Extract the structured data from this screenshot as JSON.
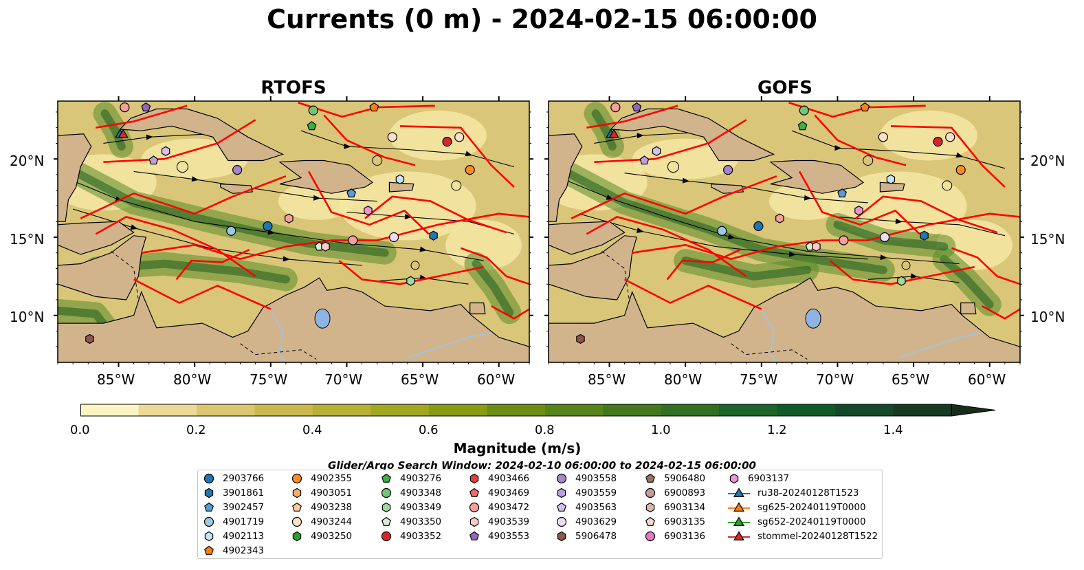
{
  "title": "Currents (0 m) - 2024-02-15 06:00:00",
  "panels": [
    {
      "title": "RTOFS"
    },
    {
      "title": "GOFS"
    }
  ],
  "axes": {
    "lat_labels": [
      "20°N",
      "15°N",
      "10°N"
    ],
    "lon_labels": [
      "85°W",
      "80°W",
      "75°W",
      "70°W",
      "65°W",
      "60°W"
    ]
  },
  "colorbar": {
    "label": "Magnitude (m/s)",
    "ticks": [
      "0.0",
      "0.2",
      "0.4",
      "0.6",
      "0.8",
      "1.0",
      "1.2",
      "1.4"
    ],
    "min": 0.0,
    "max": 1.5,
    "step": 0.1,
    "extend": "max",
    "colors": [
      "#fbf5c1",
      "#ecd994",
      "#dcc670",
      "#ccb94e",
      "#b8b135",
      "#a1a720",
      "#899c12",
      "#6f8f12",
      "#578418",
      "#43791c",
      "#317020",
      "#1c6528",
      "#0f5a2a",
      "#13492a",
      "#183a25",
      "#192c1c"
    ]
  },
  "colors": {
    "land": "#d2b48c",
    "lake": "#8fb4e3",
    "river": "#a7c0de",
    "track": "#ff0000",
    "streamline": "#000000",
    "water_light": "#f4e7a5",
    "water_green": "#5a8a2a"
  },
  "search_window": "Glider/Argo Search Window: 2024-02-10 06:00:00 to 2024-02-15 06:00:00",
  "legend": [
    [
      {
        "label": "2903766",
        "marker": "circle",
        "color": "#1f77b4"
      },
      {
        "label": "3901861",
        "marker": "hexagon",
        "color": "#1f77b4"
      },
      {
        "label": "3902457",
        "marker": "pentagon",
        "color": "#5b9bd5"
      },
      {
        "label": "4901719",
        "marker": "circle",
        "color": "#9ecae1"
      },
      {
        "label": "4902113",
        "marker": "hexagon",
        "color": "#c6e4f7"
      },
      {
        "label": "4902343",
        "marker": "pentagon",
        "color": "#ff7f0e"
      }
    ],
    [
      {
        "label": "4902355",
        "marker": "circle",
        "color": "#ff8c24"
      },
      {
        "label": "4903051",
        "marker": "hexagon",
        "color": "#fdae6b"
      },
      {
        "label": "4903238",
        "marker": "pentagon",
        "color": "#fdc99a"
      },
      {
        "label": "4903244",
        "marker": "circle",
        "color": "#fde0c5"
      },
      {
        "label": "4903250",
        "marker": "hexagon",
        "color": "#2ca02c"
      }
    ],
    [
      {
        "label": "4903276",
        "marker": "pentagon",
        "color": "#3cb044"
      },
      {
        "label": "4903348",
        "marker": "circle",
        "color": "#74c476"
      },
      {
        "label": "4903349",
        "marker": "hexagon",
        "color": "#a1d99b"
      },
      {
        "label": "4903350",
        "marker": "pentagon",
        "color": "#d5efcf"
      },
      {
        "label": "4903352",
        "marker": "circle",
        "color": "#d62728"
      }
    ],
    [
      {
        "label": "4903466",
        "marker": "hexagon",
        "color": "#e0403a"
      },
      {
        "label": "4903469",
        "marker": "pentagon",
        "color": "#ef6b6b"
      },
      {
        "label": "4903472",
        "marker": "circle",
        "color": "#f4a09b"
      },
      {
        "label": "4903539",
        "marker": "hexagon",
        "color": "#fbcac6"
      },
      {
        "label": "4903553",
        "marker": "pentagon",
        "color": "#9467bd"
      }
    ],
    [
      {
        "label": "4903558",
        "marker": "circle",
        "color": "#a585cc"
      },
      {
        "label": "4903559",
        "marker": "hexagon",
        "color": "#bc9fdd"
      },
      {
        "label": "4903563",
        "marker": "pentagon",
        "color": "#d4c0ee"
      },
      {
        "label": "4903629",
        "marker": "circle",
        "color": "#ecdcf8"
      },
      {
        "label": "5906478",
        "marker": "hexagon",
        "color": "#8c564b"
      }
    ],
    [
      {
        "label": "5906480",
        "marker": "pentagon",
        "color": "#a0705f"
      },
      {
        "label": "6900893",
        "marker": "circle",
        "color": "#c49c94"
      },
      {
        "label": "6903134",
        "marker": "hexagon",
        "color": "#ddb7ad"
      },
      {
        "label": "6903135",
        "marker": "pentagon",
        "color": "#f2d7cf"
      },
      {
        "label": "6903136",
        "marker": "circle",
        "color": "#e377c2"
      }
    ],
    [
      {
        "label": "6903137",
        "marker": "hexagon",
        "color": "#ec95d0"
      },
      {
        "label": "ru38-20240128T1523",
        "marker": "triangle",
        "color": "#1f77b4"
      },
      {
        "label": "sg625-20240119T0000",
        "marker": "triangle",
        "color": "#ff7f0e"
      },
      {
        "label": "sg652-20240119T0000",
        "marker": "triangle",
        "color": "#2ca02c"
      },
      {
        "label": "stommel-20240128T1522",
        "marker": "triangle",
        "color": "#d62728"
      }
    ]
  ],
  "float_positions": [
    {
      "lon": -84.6,
      "lat": 23.3,
      "marker": "circle",
      "color": "#f4a09b"
    },
    {
      "lon": -83.2,
      "lat": 23.3,
      "marker": "pentagon",
      "color": "#9467bd"
    },
    {
      "lon": -82.7,
      "lat": 19.9,
      "marker": "pentagon",
      "color": "#bc9fdd"
    },
    {
      "lon": -81.9,
      "lat": 20.5,
      "marker": "hexagon",
      "color": "#d4c0ee"
    },
    {
      "lon": -77.2,
      "lat": 19.3,
      "marker": "circle",
      "color": "#a585cc"
    },
    {
      "lon": -72.2,
      "lat": 23.1,
      "marker": "circle",
      "color": "#74c476"
    },
    {
      "lon": -72.3,
      "lat": 22.1,
      "marker": "pentagon",
      "color": "#3cb044"
    },
    {
      "lon": -68.2,
      "lat": 23.3,
      "marker": "pentagon",
      "color": "#ff7f0e"
    },
    {
      "lon": -67.0,
      "lat": 21.4,
      "marker": "circle",
      "color": "#fde0c5"
    },
    {
      "lon": -63.4,
      "lat": 21.1,
      "marker": "circle",
      "color": "#d62728"
    },
    {
      "lon": -62.6,
      "lat": 21.4,
      "marker": "circle",
      "color": "#fde0c5"
    },
    {
      "lon": -61.9,
      "lat": 19.3,
      "marker": "circle",
      "color": "#ff8c24"
    },
    {
      "lon": -66.5,
      "lat": 18.7,
      "marker": "hexagon",
      "color": "#c6e4f7"
    },
    {
      "lon": -69.7,
      "lat": 17.8,
      "marker": "pentagon",
      "color": "#5b9bd5"
    },
    {
      "lon": -68.6,
      "lat": 16.7,
      "marker": "hexagon",
      "color": "#ec95d0"
    },
    {
      "lon": -73.8,
      "lat": 16.2,
      "marker": "hexagon",
      "color": "#f4a09b"
    },
    {
      "lon": -75.2,
      "lat": 15.7,
      "marker": "circle",
      "color": "#1f77b4"
    },
    {
      "lon": -77.6,
      "lat": 15.4,
      "marker": "circle",
      "color": "#9ecae1"
    },
    {
      "lon": -71.8,
      "lat": 14.4,
      "marker": "pentagon",
      "color": "#d5efcf"
    },
    {
      "lon": -71.4,
      "lat": 14.4,
      "marker": "hexagon",
      "color": "#fbcac6"
    },
    {
      "lon": -69.6,
      "lat": 14.8,
      "marker": "circle",
      "color": "#f4a09b"
    },
    {
      "lon": -66.9,
      "lat": 15.0,
      "marker": "circle",
      "color": "#ecdcf8"
    },
    {
      "lon": -64.3,
      "lat": 15.1,
      "marker": "hexagon",
      "color": "#1f77b4"
    },
    {
      "lon": -65.8,
      "lat": 12.2,
      "marker": "hexagon",
      "color": "#a1d99b"
    },
    {
      "lon": -86.9,
      "lat": 8.5,
      "marker": "hexagon",
      "color": "#8c564b"
    }
  ],
  "glider_positions": [
    {
      "lon": -84.9,
      "lat": 21.6,
      "color": "#1f77b4"
    },
    {
      "lon": -84.7,
      "lat": 21.6,
      "color": "#d62728"
    }
  ]
}
